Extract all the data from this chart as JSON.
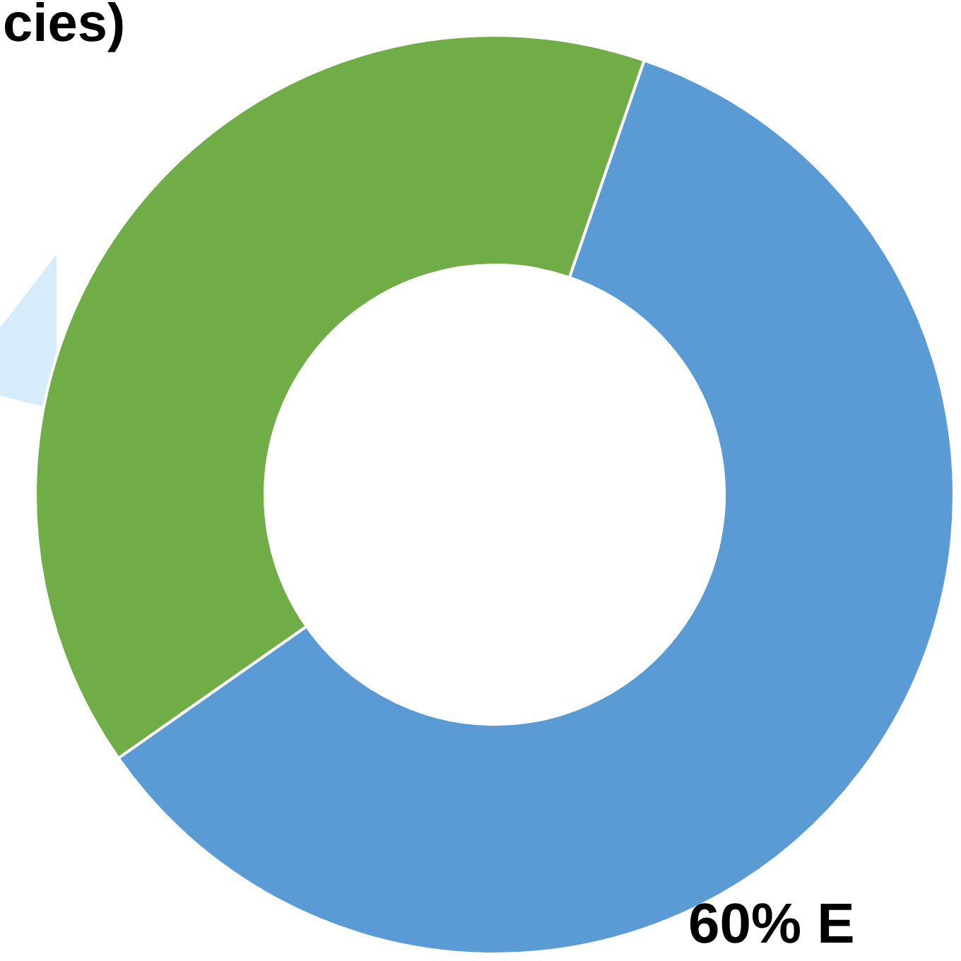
{
  "chart_data": {
    "type": "donut",
    "title": "cies)",
    "categories": [
      null,
      null
    ],
    "values": [
      60,
      40
    ],
    "colors": [
      "#5b9bd5",
      "#70ad47"
    ],
    "value_labels": [
      "60% E",
      null
    ]
  }
}
